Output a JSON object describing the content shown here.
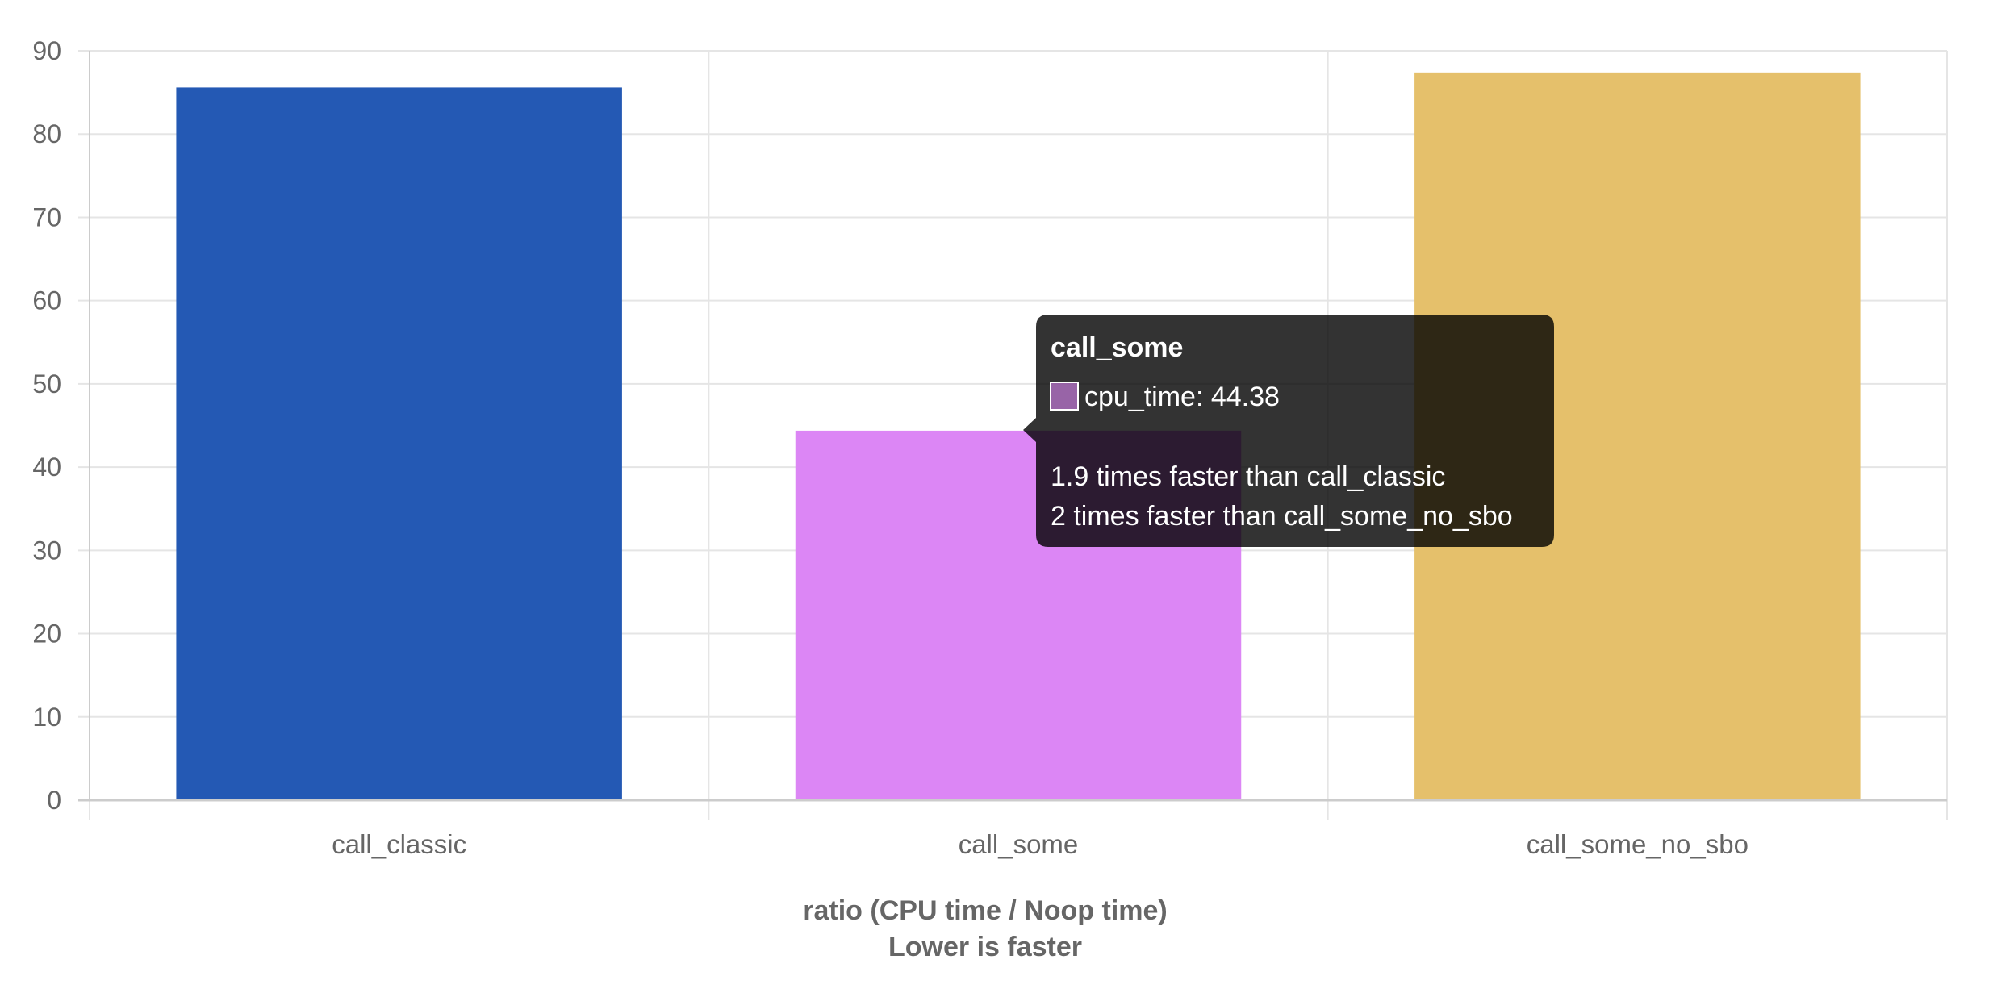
{
  "chart_data": {
    "type": "bar",
    "categories": [
      "call_classic",
      "call_some",
      "call_some_no_sbo"
    ],
    "series": [
      {
        "name": "cpu_time",
        "values": [
          85.6,
          44.38,
          87.4
        ],
        "colors": [
          "#2459b4",
          "#dc86f5",
          "#e5c06b"
        ]
      }
    ],
    "title": "",
    "xlabel": "ratio (CPU time / Noop time)",
    "xlabel_line2": "Lower is faster",
    "ylabel": "",
    "ylim": [
      0,
      90
    ],
    "yticks": [
      "0",
      "10",
      "20",
      "30",
      "40",
      "50",
      "60",
      "70",
      "80",
      "90"
    ],
    "grid": true,
    "legend": "none"
  },
  "tooltip": {
    "title": "call_some",
    "value_line": "cpu_time: 44.38",
    "swatch_color": "#dc86f5",
    "footer_line1": "1.9 times faster than call_classic",
    "footer_line2": "2 times faster than call_some_no_sbo"
  },
  "colors": {
    "grid": "#e5e5e5",
    "axis": "#cccccc",
    "text": "#666666",
    "tooltip_bg": "#000000"
  }
}
